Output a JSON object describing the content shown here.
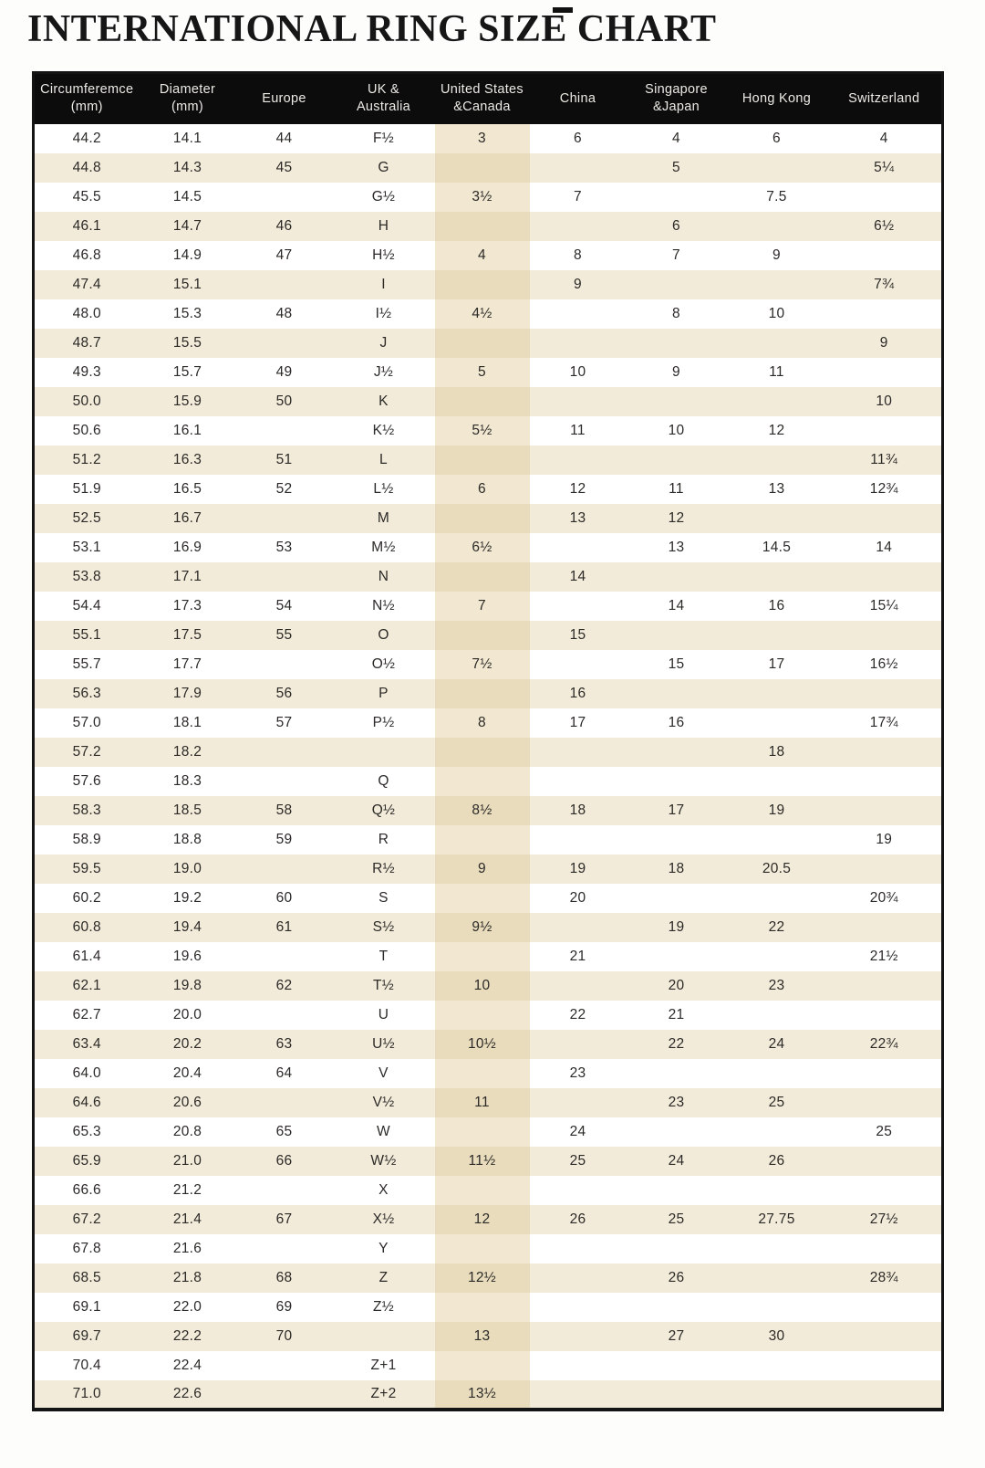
{
  "title": "INTERNATIONAL RING SIZE CHART",
  "colors": {
    "header_bg": "#0c0c0c",
    "header_text": "#eceae5",
    "row_white": "#ffffff",
    "row_beige": "#f3ebda",
    "us_band_on_white": "#f2e8d1",
    "us_band_on_beige": "#e9dcbd",
    "border": "#141414",
    "text": "#2b2a27"
  },
  "table": {
    "us_column_index": 4,
    "columns": [
      {
        "id": "circumference-mm",
        "label": "Circumferemce\n(mm)"
      },
      {
        "id": "diameter-mm",
        "label": "Diameter\n(mm)"
      },
      {
        "id": "europe",
        "label": "Europe"
      },
      {
        "id": "uk-australia",
        "label": "UK &\nAustralia"
      },
      {
        "id": "us-canada",
        "label": "United States\n&Canada"
      },
      {
        "id": "china",
        "label": "China"
      },
      {
        "id": "singapore-japan",
        "label": "Singapore\n&Japan"
      },
      {
        "id": "hong-kong",
        "label": "Hong Kong"
      },
      {
        "id": "switzerland",
        "label": "Switzerland"
      }
    ],
    "rows": [
      [
        "44.2",
        "14.1",
        "44",
        "F½",
        "3",
        "6",
        "4",
        "6",
        "4"
      ],
      [
        "44.8",
        "14.3",
        "45",
        "G",
        "",
        "",
        "5",
        "",
        "5¼"
      ],
      [
        "45.5",
        "14.5",
        "",
        "G½",
        "3½",
        "7",
        "",
        "7.5",
        ""
      ],
      [
        "46.1",
        "14.7",
        "46",
        "H",
        "",
        "",
        "6",
        "",
        "6½"
      ],
      [
        "46.8",
        "14.9",
        "47",
        "H½",
        "4",
        "8",
        "7",
        "9",
        ""
      ],
      [
        "47.4",
        "15.1",
        "",
        "I",
        "",
        "9",
        "",
        "",
        "7¾"
      ],
      [
        "48.0",
        "15.3",
        "48",
        "I½",
        "4½",
        "",
        "8",
        "10",
        ""
      ],
      [
        "48.7",
        "15.5",
        "",
        "J",
        "",
        "",
        "",
        "",
        "9"
      ],
      [
        "49.3",
        "15.7",
        "49",
        "J½",
        "5",
        "10",
        "9",
        "11",
        ""
      ],
      [
        "50.0",
        "15.9",
        "50",
        "K",
        "",
        "",
        "",
        "",
        "10"
      ],
      [
        "50.6",
        "16.1",
        "",
        "K½",
        "5½",
        "11",
        "10",
        "12",
        ""
      ],
      [
        "51.2",
        "16.3",
        "51",
        "L",
        "",
        "",
        "",
        "",
        "11¾"
      ],
      [
        "51.9",
        "16.5",
        "52",
        "L½",
        "6",
        "12",
        "11",
        "13",
        "12¾"
      ],
      [
        "52.5",
        "16.7",
        "",
        "M",
        "",
        "13",
        "12",
        "",
        ""
      ],
      [
        "53.1",
        "16.9",
        "53",
        "M½",
        "6½",
        "",
        "13",
        "14.5",
        "14"
      ],
      [
        "53.8",
        "17.1",
        "",
        "N",
        "",
        "14",
        "",
        "",
        ""
      ],
      [
        "54.4",
        "17.3",
        "54",
        "N½",
        "7",
        "",
        "14",
        "16",
        "15¼"
      ],
      [
        "55.1",
        "17.5",
        "55",
        "O",
        "",
        "15",
        "",
        "",
        ""
      ],
      [
        "55.7",
        "17.7",
        "",
        "O½",
        "7½",
        "",
        "15",
        "17",
        "16½"
      ],
      [
        "56.3",
        "17.9",
        "56",
        "P",
        "",
        "16",
        "",
        "",
        ""
      ],
      [
        "57.0",
        "18.1",
        "57",
        "P½",
        "8",
        "17",
        "16",
        "",
        "17¾"
      ],
      [
        "57.2",
        "18.2",
        "",
        "",
        "",
        "",
        "",
        "18",
        ""
      ],
      [
        "57.6",
        "18.3",
        "",
        "Q",
        "",
        "",
        "",
        "",
        ""
      ],
      [
        "58.3",
        "18.5",
        "58",
        "Q½",
        "8½",
        "18",
        "17",
        "19",
        ""
      ],
      [
        "58.9",
        "18.8",
        "59",
        "R",
        "",
        "",
        "",
        "",
        "19"
      ],
      [
        "59.5",
        "19.0",
        "",
        "R½",
        "9",
        "19",
        "18",
        "20.5",
        ""
      ],
      [
        "60.2",
        "19.2",
        "60",
        "S",
        "",
        "20",
        "",
        "",
        "20¾"
      ],
      [
        "60.8",
        "19.4",
        "61",
        "S½",
        "9½",
        "",
        "19",
        "22",
        ""
      ],
      [
        "61.4",
        "19.6",
        "",
        "T",
        "",
        "21",
        "",
        "",
        "21½"
      ],
      [
        "62.1",
        "19.8",
        "62",
        "T½",
        "10",
        "",
        "20",
        "23",
        ""
      ],
      [
        "62.7",
        "20.0",
        "",
        "U",
        "",
        "22",
        "21",
        "",
        ""
      ],
      [
        "63.4",
        "20.2",
        "63",
        "U½",
        "10½",
        "",
        "22",
        "24",
        "22¾"
      ],
      [
        "64.0",
        "20.4",
        "64",
        "V",
        "",
        "23",
        "",
        "",
        ""
      ],
      [
        "64.6",
        "20.6",
        "",
        "V½",
        "11",
        "",
        "23",
        "25",
        ""
      ],
      [
        "65.3",
        "20.8",
        "65",
        "W",
        "",
        "24",
        "",
        "",
        "25"
      ],
      [
        "65.9",
        "21.0",
        "66",
        "W½",
        "11½",
        "25",
        "24",
        "26",
        ""
      ],
      [
        "66.6",
        "21.2",
        "",
        "X",
        "",
        "",
        "",
        "",
        ""
      ],
      [
        "67.2",
        "21.4",
        "67",
        "X½",
        "12",
        "26",
        "25",
        "27.75",
        "27½"
      ],
      [
        "67.8",
        "21.6",
        "",
        "Y",
        "",
        "",
        "",
        "",
        ""
      ],
      [
        "68.5",
        "21.8",
        "68",
        "Z",
        "12½",
        "",
        "26",
        "",
        "28¾"
      ],
      [
        "69.1",
        "22.0",
        "69",
        "Z½",
        "",
        "",
        "",
        "",
        ""
      ],
      [
        "69.7",
        "22.2",
        "70",
        "",
        "13",
        "",
        "27",
        "30",
        ""
      ],
      [
        "70.4",
        "22.4",
        "",
        "Z+1",
        "",
        "",
        "",
        "",
        ""
      ],
      [
        "71.0",
        "22.6",
        "",
        "Z+2",
        "13½",
        "",
        "",
        "",
        ""
      ]
    ]
  }
}
